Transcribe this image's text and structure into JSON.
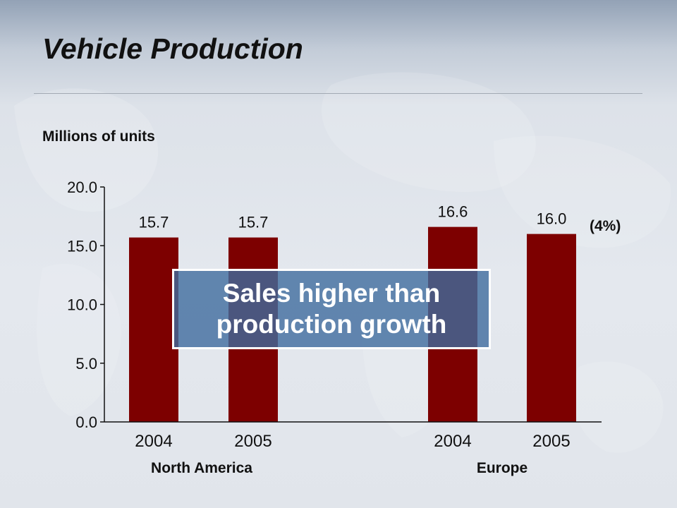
{
  "slide": {
    "title": "Vehicle Production",
    "units_label": "Millions of units",
    "callout": "Sales higher than production growth",
    "change_label": "(4%)"
  },
  "chart_data": {
    "type": "bar",
    "ylim": [
      0,
      20
    ],
    "y_ticks": [
      "0.0",
      "5.0",
      "10.0",
      "15.0",
      "20.0"
    ],
    "groups": [
      {
        "name": "North America",
        "categories": [
          "2004",
          "2005"
        ],
        "values": [
          15.7,
          15.7
        ],
        "value_labels": [
          "15.7",
          "15.7"
        ]
      },
      {
        "name": "Europe",
        "categories": [
          "2004",
          "2005"
        ],
        "values": [
          16.6,
          16.0
        ],
        "value_labels": [
          "16.6",
          "16.0"
        ]
      }
    ],
    "bar_color": "#7d0000",
    "grid": false,
    "legend": "none"
  },
  "colors": {
    "callout_bg": "#3e6c9e",
    "text": "#111111"
  }
}
